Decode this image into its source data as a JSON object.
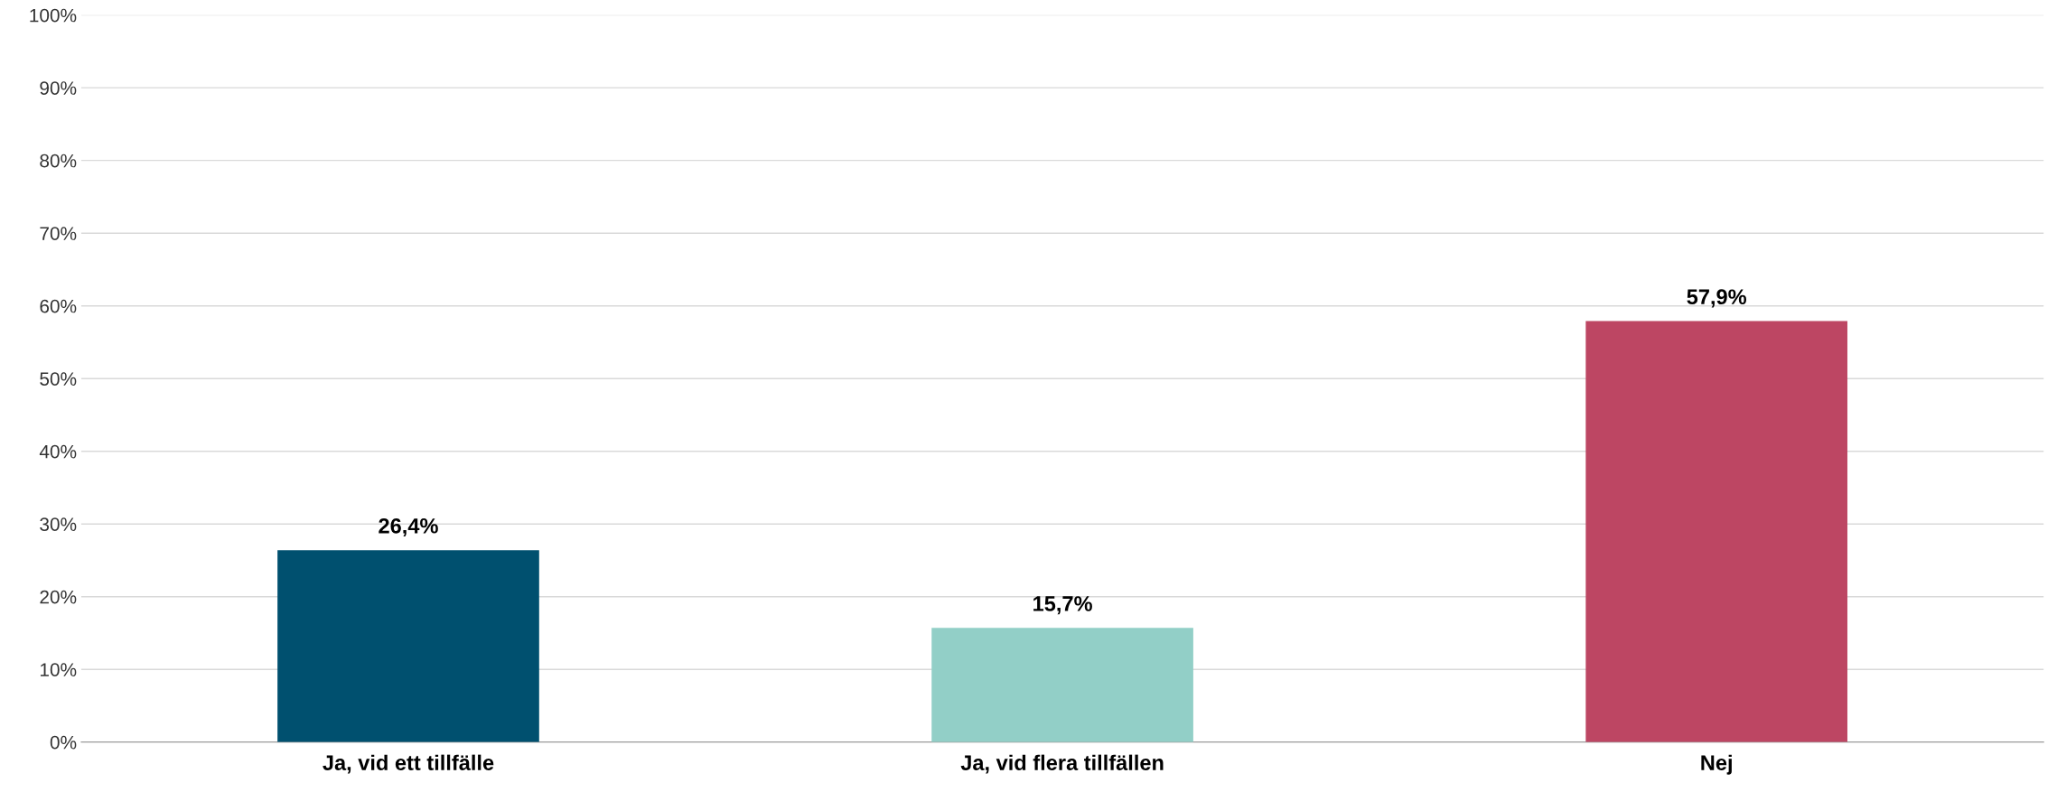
{
  "chart_data": {
    "type": "bar",
    "categories": [
      "Ja, vid ett tillfälle",
      "Ja, vid flera tillfällen",
      "Nej"
    ],
    "values": [
      26.4,
      15.7,
      57.9
    ],
    "colors": [
      "#00506f",
      "#92cfc7",
      "#bd4663"
    ],
    "value_labels": [
      "26,4%",
      "15,7%",
      "57,9%"
    ],
    "ylim": [
      0,
      100
    ],
    "yticks": [
      {
        "value": 0,
        "label": "0%"
      },
      {
        "value": 10,
        "label": "10%"
      },
      {
        "value": 20,
        "label": "20%"
      },
      {
        "value": 30,
        "label": "30%"
      },
      {
        "value": 40,
        "label": "40%"
      },
      {
        "value": 50,
        "label": "50%"
      },
      {
        "value": 60,
        "label": "60%"
      },
      {
        "value": 70,
        "label": "70%"
      },
      {
        "value": 80,
        "label": "80%"
      },
      {
        "value": 90,
        "label": "90%"
      },
      {
        "value": 100,
        "label": "100%"
      }
    ],
    "grid": "y",
    "legend": false
  }
}
